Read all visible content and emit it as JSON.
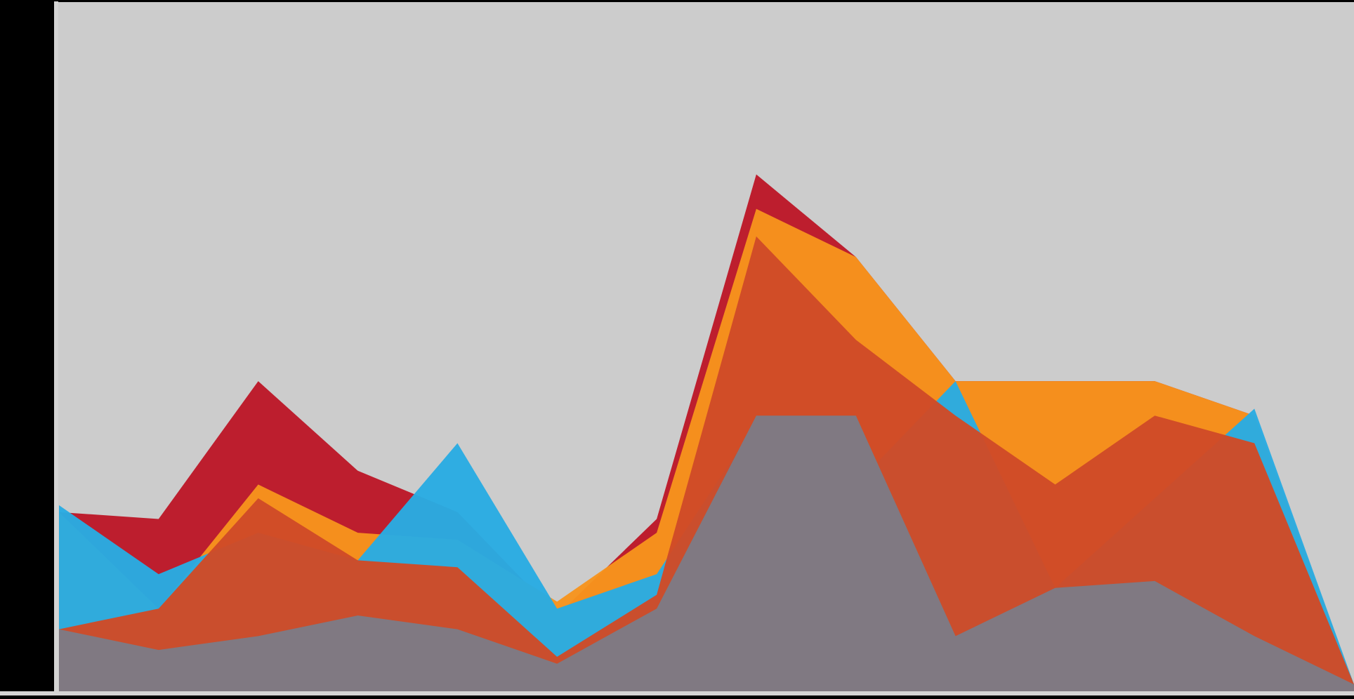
{
  "chart_data": {
    "type": "area",
    "title": "",
    "xlabel": "",
    "ylabel": "",
    "x": [
      0,
      1,
      2,
      3,
      4,
      5,
      6,
      7,
      8,
      9,
      10,
      11,
      12,
      13
    ],
    "ylim": [
      0,
      100
    ],
    "grid": false,
    "legend": "none",
    "background": "#cccccc",
    "axis_color": "#d4d4d4",
    "series": [
      {
        "color": "#bd1e2e",
        "opacity": 1.0,
        "values": [
          26,
          25,
          45,
          32,
          26,
          11,
          25,
          75,
          63,
          45,
          45,
          45,
          40,
          1
        ]
      },
      {
        "color": "#f7941d",
        "opacity": 0.96,
        "values": [
          26,
          12,
          30,
          23,
          22,
          13,
          23,
          70,
          63,
          45,
          45,
          45,
          40,
          1
        ]
      },
      {
        "color": "#29abe2",
        "opacity": 0.97,
        "values": [
          27,
          17,
          23,
          19,
          36,
          12,
          17,
          39,
          30,
          45,
          15,
          28,
          41,
          1
        ]
      },
      {
        "color": "#d04a27",
        "opacity": 0.97,
        "values": [
          9,
          12,
          28,
          19,
          18,
          5,
          14,
          66,
          51,
          40,
          30,
          40,
          36,
          1
        ]
      },
      {
        "color": "#7d7b85",
        "opacity": 0.97,
        "values": [
          9,
          6,
          8,
          11,
          9,
          4,
          12,
          40,
          40,
          8,
          15,
          16,
          8,
          1
        ]
      }
    ]
  }
}
